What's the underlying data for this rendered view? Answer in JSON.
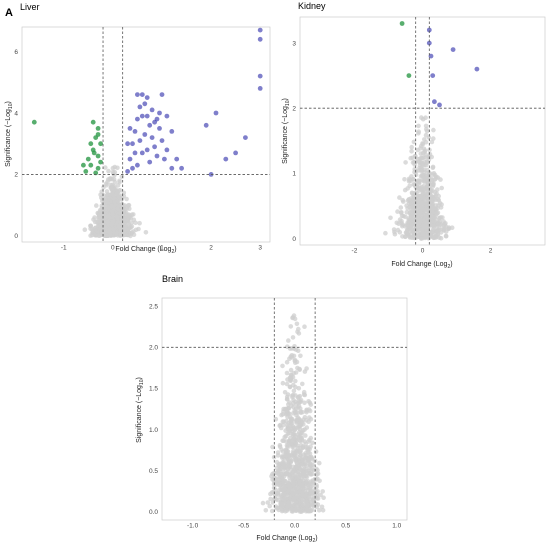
{
  "figure_label": "A",
  "colors": {
    "nonsignificant": "#cfcfcf",
    "up": "#2a2aa8",
    "down": "#2e9a4a",
    "threshold": "#555555",
    "panel_border": "#cccccc"
  },
  "chart_data": [
    {
      "type": "scatter",
      "title": "Liver",
      "xlabel_main": "Fold Change (Log",
      "xlabel_sub": "2",
      "xlabel_end": ")",
      "ylabel_main": "Significance (−Log",
      "ylabel_sub": "10",
      "ylabel_end": ")",
      "xlim": [
        -1.85,
        3.2
      ],
      "ylim": [
        -0.2,
        6.8
      ],
      "x_ticks": [
        -1,
        0,
        1,
        2,
        3
      ],
      "y_ticks": [
        0,
        2,
        4,
        6
      ],
      "x_tick_labels": [
        "-1",
        "0",
        "1",
        "2",
        "3"
      ],
      "y_tick_labels": [
        "0",
        "2",
        "4",
        "6"
      ],
      "thresholds": {
        "x": [
          -0.2,
          0.2
        ],
        "y": 2
      },
      "cloud": {
        "count": 900,
        "x_sd": 0.18,
        "max_y": 2.3,
        "seed": 11
      },
      "down_points": [
        [
          -1.6,
          3.7
        ],
        [
          -0.4,
          3.7
        ],
        [
          -0.3,
          3.5
        ],
        [
          -0.35,
          3.2
        ],
        [
          -0.25,
          3.0
        ],
        [
          -0.4,
          2.8
        ],
        [
          -0.3,
          2.6
        ],
        [
          -0.5,
          2.5
        ],
        [
          -0.45,
          2.3
        ],
        [
          -0.3,
          2.2
        ],
        [
          -0.55,
          2.1
        ],
        [
          -0.35,
          2.05
        ],
        [
          -0.25,
          2.4
        ],
        [
          -0.45,
          3.0
        ],
        [
          -0.6,
          2.3
        ],
        [
          -0.3,
          3.3
        ],
        [
          -0.38,
          2.7
        ]
      ],
      "up_points": [
        [
          0.3,
          2.1
        ],
        [
          0.35,
          2.5
        ],
        [
          0.4,
          3.0
        ],
        [
          0.45,
          3.4
        ],
        [
          0.5,
          3.8
        ],
        [
          0.55,
          4.2
        ],
        [
          0.6,
          4.6
        ],
        [
          0.65,
          4.3
        ],
        [
          0.7,
          3.9
        ],
        [
          0.75,
          3.6
        ],
        [
          0.8,
          3.2
        ],
        [
          0.85,
          2.9
        ],
        [
          0.9,
          2.6
        ],
        [
          0.95,
          3.5
        ],
        [
          1.0,
          3.1
        ],
        [
          1.1,
          2.8
        ],
        [
          1.2,
          3.4
        ],
        [
          1.3,
          2.5
        ],
        [
          1.4,
          2.2
        ],
        [
          0.5,
          2.3
        ],
        [
          0.6,
          2.7
        ],
        [
          0.4,
          2.2
        ],
        [
          0.7,
          4.5
        ],
        [
          0.8,
          4.1
        ],
        [
          1.0,
          4.6
        ],
        [
          0.9,
          3.8
        ],
        [
          0.3,
          3.0
        ],
        [
          0.35,
          3.5
        ],
        [
          1.9,
          3.6
        ],
        [
          2.0,
          2.0
        ],
        [
          2.1,
          4.0
        ],
        [
          2.3,
          2.5
        ],
        [
          2.5,
          2.7
        ],
        [
          2.7,
          3.2
        ],
        [
          3.0,
          4.8
        ],
        [
          3.0,
          5.2
        ],
        [
          3.0,
          6.4
        ],
        [
          3.0,
          6.7
        ],
        [
          1.1,
          3.9
        ],
        [
          1.2,
          2.2
        ],
        [
          0.45,
          2.7
        ],
        [
          0.55,
          3.1
        ],
        [
          0.65,
          3.3
        ],
        [
          0.75,
          2.4
        ],
        [
          0.85,
          3.7
        ],
        [
          0.95,
          4.0
        ],
        [
          1.05,
          2.5
        ],
        [
          0.5,
          4.6
        ],
        [
          0.6,
          3.9
        ],
        [
          0.7,
          2.8
        ]
      ]
    },
    {
      "type": "scatter",
      "title": "Kidney",
      "xlabel_main": "Fold Change (Log",
      "xlabel_sub": "2",
      "xlabel_end": ")",
      "ylabel_main": "Significance (−Log",
      "ylabel_sub": "10",
      "ylabel_end": ")",
      "xlim": [
        -3.6,
        3.6
      ],
      "ylim": [
        -0.1,
        3.4
      ],
      "x_ticks": [
        -2,
        0,
        2
      ],
      "y_ticks": [
        0,
        1,
        2,
        3
      ],
      "x_tick_labels": [
        "-2",
        "0",
        "2"
      ],
      "y_tick_labels": [
        "0",
        "1",
        "2",
        "3"
      ],
      "thresholds": {
        "x": [
          -0.2,
          0.2
        ],
        "y": 2
      },
      "cloud": {
        "count": 700,
        "x_sd": 0.3,
        "max_y": 1.95,
        "seed": 23
      },
      "down_points": [
        [
          -0.6,
          3.3
        ],
        [
          -0.4,
          2.5
        ]
      ],
      "up_points": [
        [
          0.2,
          3.0
        ],
        [
          0.25,
          2.8
        ],
        [
          0.3,
          2.5
        ],
        [
          0.35,
          2.1
        ],
        [
          0.5,
          2.05
        ],
        [
          0.9,
          2.9
        ],
        [
          1.6,
          2.6
        ],
        [
          0.2,
          3.2
        ]
      ]
    },
    {
      "type": "scatter",
      "title": "Brain",
      "xlabel_main": "Fold Change (Log",
      "xlabel_sub": "2",
      "xlabel_end": ")",
      "ylabel_main": "Significance (−Log",
      "ylabel_sub": "10",
      "ylabel_end": ")",
      "xlim": [
        -1.3,
        1.1
      ],
      "ylim": [
        -0.1,
        2.6
      ],
      "x_ticks": [
        -1.0,
        -0.5,
        0.0,
        0.5,
        1.0
      ],
      "y_ticks": [
        0.0,
        0.5,
        1.0,
        1.5,
        2.0,
        2.5
      ],
      "x_tick_labels": [
        "-1.0",
        "-0.5",
        "0.0",
        "0.5",
        "1.0"
      ],
      "y_tick_labels": [
        "0.0",
        "0.5",
        "1.0",
        "1.5",
        "2.0",
        "2.5"
      ],
      "thresholds": {
        "x": [
          -0.2,
          0.2
        ],
        "y": 2
      },
      "cloud": {
        "count": 900,
        "x_sd": 0.1,
        "max_y": 2.45,
        "seed": 37
      },
      "down_points": [],
      "up_points": []
    }
  ]
}
